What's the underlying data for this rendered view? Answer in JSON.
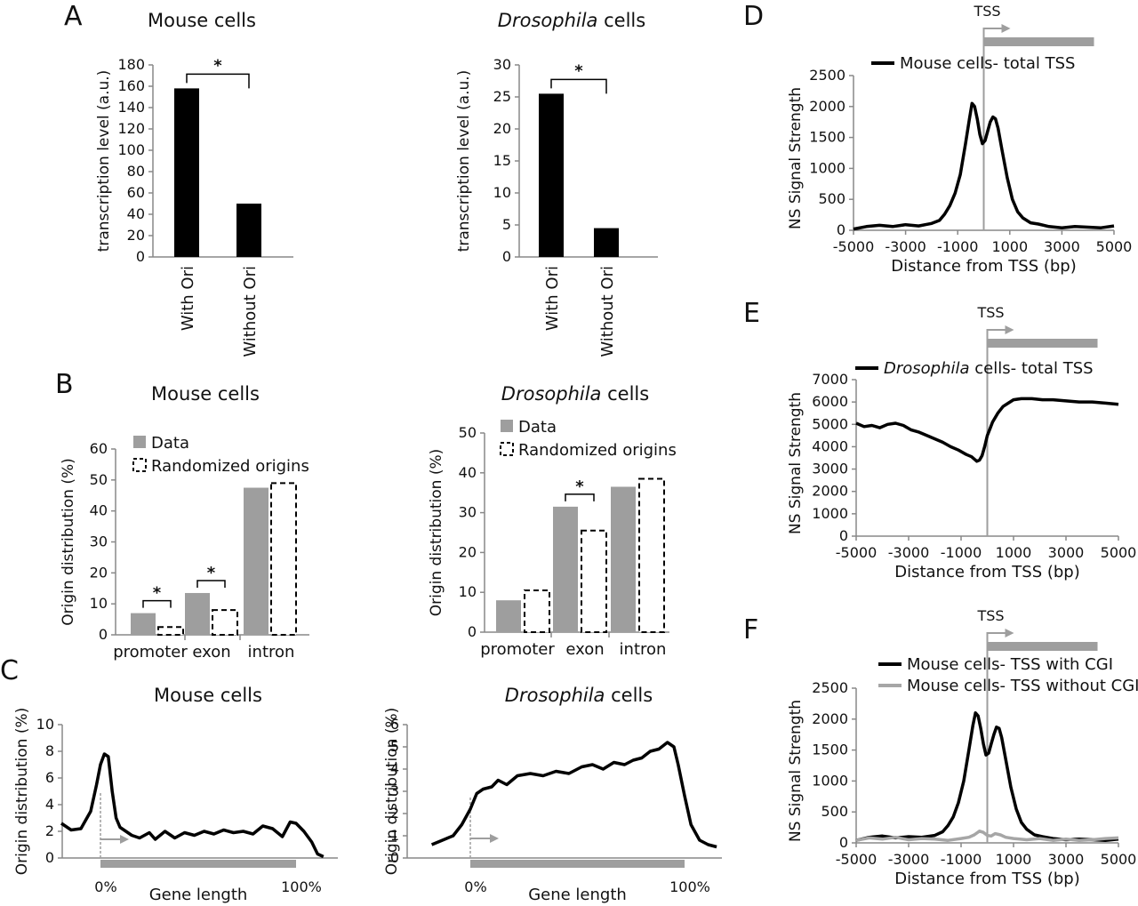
{
  "chart_data": [
    {
      "panel": "A",
      "type": "bar",
      "title": "Mouse cells",
      "ylabel": "transcription level (a.u.)",
      "ylim": [
        0,
        180
      ],
      "yticks": [
        0,
        20,
        40,
        60,
        80,
        100,
        120,
        140,
        160,
        180
      ],
      "categories": [
        "With Ori",
        "Without Ori"
      ],
      "values": [
        158,
        50
      ],
      "colors": [
        "#000000",
        "#000000"
      ],
      "significance": "*"
    },
    {
      "panel": "",
      "type": "bar",
      "title": "Drosophila cells",
      "title_italic": "Drosophila",
      "title_rest": " cells",
      "ylabel": "transcription level (a.u.)",
      "ylim": [
        0,
        30
      ],
      "yticks": [
        0,
        5,
        10,
        15,
        20,
        25,
        30
      ],
      "categories": [
        "With Ori",
        "Without Ori"
      ],
      "values": [
        25.5,
        4.5
      ],
      "significance": "*"
    },
    {
      "panel": "B",
      "type": "bar",
      "title": "Mouse cells",
      "ylabel": "Origin distribution (%)",
      "ylim": [
        0,
        60
      ],
      "yticks": [
        0,
        10,
        20,
        30,
        40,
        50,
        60
      ],
      "categories": [
        "promoter",
        "exon",
        "intron"
      ],
      "series": [
        {
          "name": "Data",
          "values": [
            7,
            13.5,
            47.5
          ],
          "color": "#9e9e9e",
          "style": "solid"
        },
        {
          "name": "Randomized origins",
          "values": [
            2.5,
            8,
            49
          ],
          "color": "#000000",
          "style": "dashed"
        }
      ],
      "significance": [
        "*",
        "*"
      ]
    },
    {
      "panel": "",
      "type": "bar",
      "title": "Drosophila cells",
      "title_italic": "Drosophila",
      "title_rest": " cells",
      "ylabel": "Origin distribution (%)",
      "ylim": [
        0,
        50
      ],
      "yticks": [
        0,
        10,
        20,
        30,
        40,
        50
      ],
      "categories": [
        "promoter",
        "exon",
        "intron"
      ],
      "series": [
        {
          "name": "Data",
          "values": [
            8,
            31.5,
            36.5
          ],
          "color": "#9e9e9e",
          "style": "solid"
        },
        {
          "name": "Randomized origins",
          "values": [
            10.5,
            25.5,
            38.5
          ],
          "color": "#000000",
          "style": "dashed"
        }
      ],
      "significance": [
        "*"
      ]
    },
    {
      "panel": "C",
      "type": "line",
      "title": "Mouse cells",
      "ylabel": "Origin distribution (%)",
      "xlabel": "Gene length",
      "ylim": [
        0,
        10
      ],
      "yticks": [
        0,
        2,
        4,
        6,
        8,
        10
      ],
      "xticklabels": [
        "0%",
        "100%"
      ],
      "x": [
        -0.2,
        -0.15,
        -0.1,
        -0.05,
        -0.02,
        0.0,
        0.02,
        0.04,
        0.06,
        0.08,
        0.1,
        0.13,
        0.16,
        0.2,
        0.25,
        0.28,
        0.33,
        0.38,
        0.43,
        0.48,
        0.53,
        0.58,
        0.63,
        0.68,
        0.73,
        0.78,
        0.83,
        0.88,
        0.93,
        0.97,
        1.0,
        1.04,
        1.08,
        1.11,
        1.14
      ],
      "y": [
        2.6,
        2.1,
        2.2,
        3.5,
        5.5,
        7.0,
        7.8,
        7.6,
        5.0,
        3.0,
        2.3,
        2.0,
        1.7,
        1.5,
        1.9,
        1.4,
        2.0,
        1.5,
        1.9,
        1.7,
        2.0,
        1.8,
        2.1,
        1.9,
        2.0,
        1.8,
        2.4,
        2.2,
        1.6,
        2.7,
        2.6,
        2.0,
        1.2,
        0.3,
        0.1
      ],
      "color": "#000000"
    },
    {
      "panel": "",
      "type": "line",
      "title": "Drosophila cells",
      "title_italic": "Drosophila",
      "title_rest": " cells",
      "ylabel": "Origin distribution (%)",
      "xlabel": "Gene length",
      "ylim": [
        0,
        6
      ],
      "yticks": [
        0,
        1,
        2,
        3,
        4,
        5,
        6
      ],
      "xticklabels": [
        "0%",
        "100%"
      ],
      "x": [
        -0.18,
        -0.13,
        -0.08,
        -0.04,
        0.0,
        0.03,
        0.06,
        0.1,
        0.13,
        0.17,
        0.22,
        0.28,
        0.34,
        0.4,
        0.46,
        0.52,
        0.57,
        0.62,
        0.67,
        0.72,
        0.76,
        0.8,
        0.84,
        0.88,
        0.92,
        0.95,
        0.97,
        1.0,
        1.03,
        1.07,
        1.11,
        1.15
      ],
      "y": [
        0.6,
        0.8,
        1.0,
        1.5,
        2.2,
        2.9,
        3.1,
        3.2,
        3.5,
        3.3,
        3.7,
        3.8,
        3.7,
        3.9,
        3.8,
        4.1,
        4.2,
        4.0,
        4.3,
        4.2,
        4.4,
        4.5,
        4.8,
        4.9,
        5.2,
        5.0,
        4.2,
        2.8,
        1.5,
        0.8,
        0.6,
        0.5
      ],
      "color": "#000000"
    },
    {
      "panel": "D",
      "type": "line",
      "ylabel": "NS Signal Strength",
      "xlabel": "Distance from TSS (bp)",
      "xlim": [
        -5000,
        5000
      ],
      "xticks": [
        -5000,
        -3000,
        -1000,
        1000,
        3000,
        5000
      ],
      "ylim": [
        0,
        2500
      ],
      "yticks": [
        0,
        500,
        1000,
        1500,
        2000,
        2500
      ],
      "tss_label": "TSS",
      "series": [
        {
          "name": "Mouse cells- total TSS",
          "color": "#000000",
          "x": [
            -5000,
            -4500,
            -4000,
            -3500,
            -3000,
            -2500,
            -2000,
            -1700,
            -1500,
            -1300,
            -1100,
            -900,
            -700,
            -550,
            -450,
            -350,
            -250,
            -150,
            -50,
            50,
            150,
            250,
            350,
            450,
            550,
            700,
            900,
            1100,
            1300,
            1500,
            1800,
            2100,
            2500,
            3000,
            3500,
            4000,
            4500,
            5000
          ],
          "y": [
            20,
            60,
            80,
            60,
            90,
            70,
            110,
            160,
            260,
            400,
            600,
            900,
            1400,
            1800,
            2050,
            2000,
            1800,
            1550,
            1400,
            1450,
            1600,
            1750,
            1830,
            1800,
            1650,
            1300,
            850,
            500,
            300,
            200,
            120,
            100,
            60,
            40,
            60,
            50,
            40,
            70
          ]
        }
      ]
    },
    {
      "panel": "E",
      "type": "line",
      "ylabel": "NS Signal Strength",
      "xlabel": "Distance from TSS (bp)",
      "xlim": [
        -5000,
        5000
      ],
      "xticks": [
        -5000,
        -3000,
        -1000,
        1000,
        3000,
        5000
      ],
      "ylim": [
        0,
        7000
      ],
      "yticks": [
        0,
        1000,
        2000,
        3000,
        4000,
        5000,
        6000,
        7000
      ],
      "tss_label": "TSS",
      "series": [
        {
          "name": "Drosophila cells- total TSS",
          "name_italic": "Drosophila",
          "name_rest": " cells- total TSS",
          "color": "#000000",
          "x": [
            -5000,
            -4700,
            -4400,
            -4100,
            -3800,
            -3500,
            -3200,
            -2900,
            -2600,
            -2300,
            -2000,
            -1700,
            -1400,
            -1100,
            -800,
            -600,
            -400,
            -300,
            -200,
            -100,
            0,
            100,
            200,
            400,
            600,
            800,
            1000,
            1300,
            1700,
            2100,
            2500,
            3000,
            3500,
            4000,
            4500,
            5000
          ],
          "y": [
            5050,
            4900,
            4950,
            4850,
            5000,
            5050,
            4950,
            4750,
            4650,
            4500,
            4350,
            4200,
            4000,
            3850,
            3650,
            3550,
            3350,
            3400,
            3600,
            4000,
            4500,
            4800,
            5100,
            5500,
            5800,
            5950,
            6100,
            6150,
            6150,
            6100,
            6100,
            6050,
            6000,
            6000,
            5950,
            5900
          ]
        }
      ]
    },
    {
      "panel": "F",
      "type": "line",
      "ylabel": "NS Signal Strength",
      "xlabel": "Distance from TSS (bp)",
      "xlim": [
        -5000,
        5000
      ],
      "xticks": [
        -5000,
        -3000,
        -1000,
        1000,
        3000,
        5000
      ],
      "ylim": [
        0,
        2500
      ],
      "yticks": [
        0,
        500,
        1000,
        1500,
        2000,
        2500
      ],
      "tss_label": "TSS",
      "series": [
        {
          "name": "Mouse cells- TSS with CGI",
          "color": "#000000",
          "x": [
            -5000,
            -4500,
            -4000,
            -3500,
            -3000,
            -2500,
            -2000,
            -1700,
            -1500,
            -1300,
            -1100,
            -900,
            -700,
            -550,
            -450,
            -350,
            -250,
            -150,
            -50,
            50,
            150,
            250,
            350,
            450,
            550,
            700,
            900,
            1100,
            1300,
            1500,
            1800,
            2100,
            2500,
            3000,
            3500,
            4000,
            4500,
            5000
          ],
          "y": [
            40,
            90,
            110,
            80,
            100,
            90,
            120,
            180,
            280,
            420,
            650,
            1000,
            1500,
            1900,
            2100,
            2050,
            1850,
            1600,
            1420,
            1450,
            1600,
            1750,
            1870,
            1850,
            1700,
            1350,
            900,
            550,
            330,
            220,
            130,
            100,
            70,
            50,
            60,
            50,
            40,
            60
          ]
        },
        {
          "name": "Mouse cells- TSS without CGI",
          "color": "#a6a6a6",
          "x": [
            -5000,
            -4500,
            -4000,
            -3500,
            -3000,
            -2500,
            -2000,
            -1500,
            -1000,
            -700,
            -500,
            -300,
            -150,
            0,
            150,
            300,
            500,
            700,
            1000,
            1500,
            2000,
            2500,
            3000,
            3500,
            4000,
            4500,
            5000
          ],
          "y": [
            40,
            80,
            60,
            90,
            50,
            70,
            60,
            40,
            70,
            90,
            130,
            190,
            170,
            120,
            110,
            150,
            130,
            90,
            70,
            50,
            70,
            40,
            60,
            40,
            50,
            70,
            80
          ]
        }
      ]
    }
  ]
}
